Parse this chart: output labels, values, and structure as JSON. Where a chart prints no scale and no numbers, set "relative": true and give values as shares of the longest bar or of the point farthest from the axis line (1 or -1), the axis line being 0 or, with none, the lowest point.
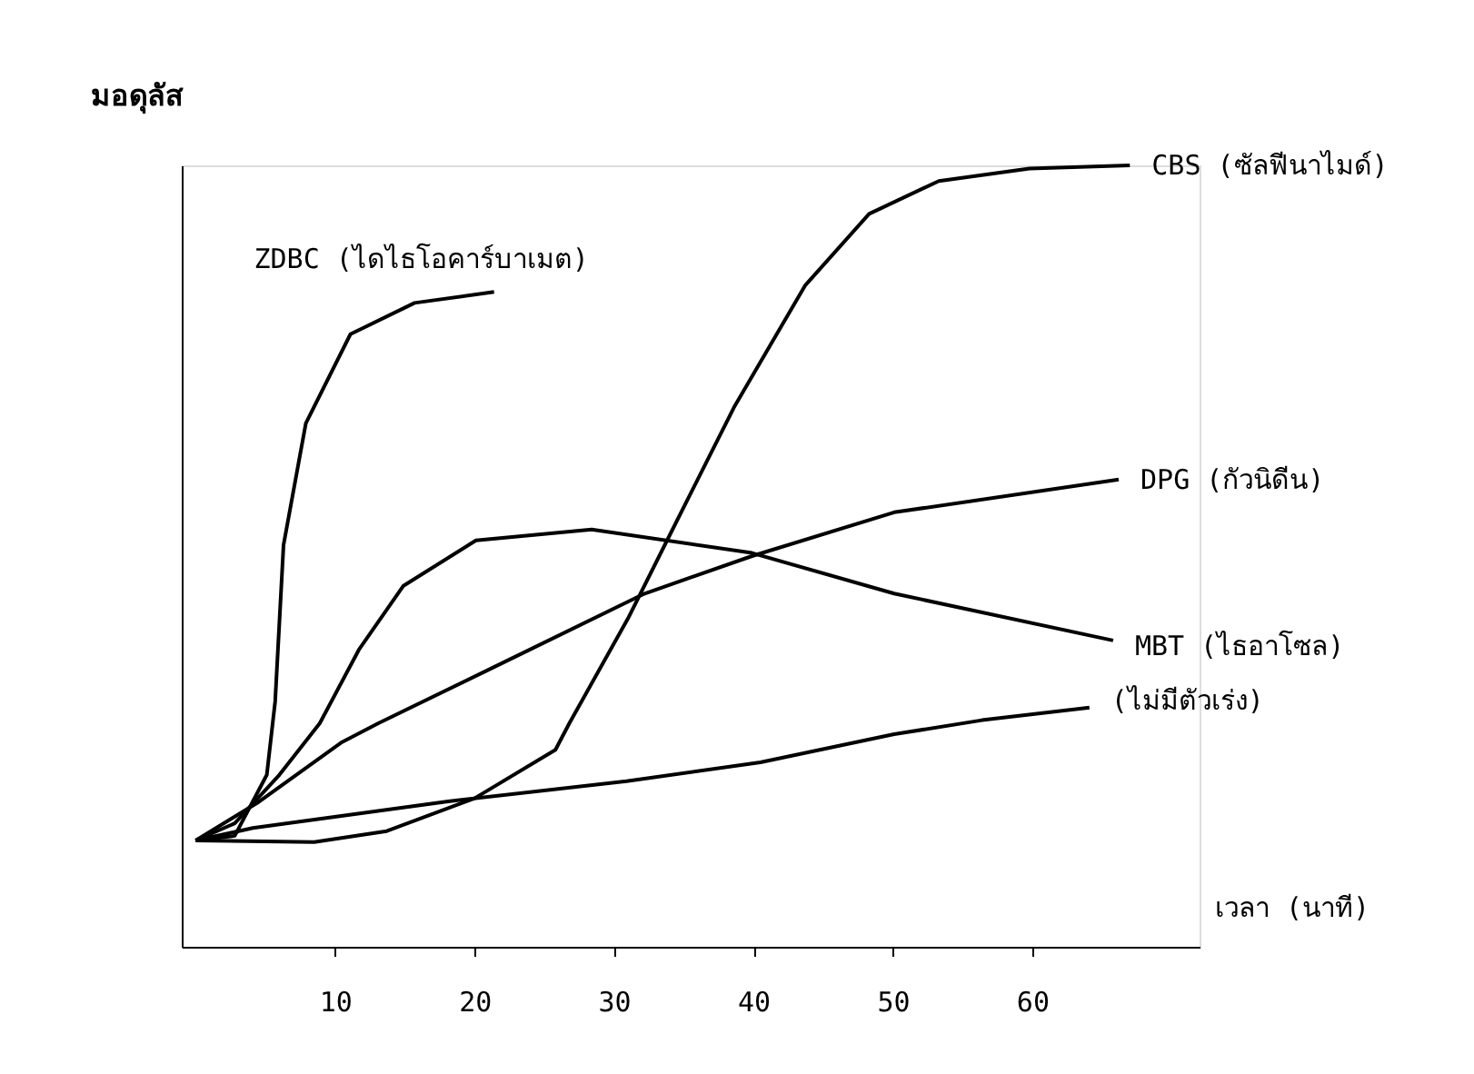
{
  "chart_data": {
    "type": "line",
    "relative": true,
    "ylabel": "มอดุลัส",
    "xlabel": "เวลา (นาที)",
    "xlim": [
      -1,
      72
    ],
    "xticks": [
      10,
      20,
      30,
      40,
      50,
      60
    ],
    "grid": false,
    "series": [
      {
        "name": "ZDBC (ไดไธโอคาร์บาเมต)",
        "color": "#000000",
        "x": [
          0,
          2.8,
          5.1,
          5.7,
          6.3,
          7.9,
          11.1,
          15.7,
          21.4
        ],
        "values": [
          0.136,
          0.142,
          0.22,
          0.314,
          0.514,
          0.67,
          0.784,
          0.824,
          0.838
        ]
      },
      {
        "name": "CBS (ซัลฟีนาไมด์)",
        "color": "#000000",
        "x": [
          0,
          8.5,
          13.7,
          20,
          25.8,
          26.8,
          31,
          34.2,
          38.6,
          43.7,
          48.3,
          53.3,
          59.8,
          67
        ],
        "values": [
          0.136,
          0.134,
          0.148,
          0.19,
          0.252,
          0.286,
          0.42,
          0.534,
          0.69,
          0.846,
          0.938,
          0.98,
          0.996,
          1.0
        ]
      },
      {
        "name": "DPG (กัวนิดีน)",
        "color": "#000000",
        "x": [
          0,
          4.4,
          10.5,
          13.1,
          21.4,
          32.2,
          39.9,
          50.1,
          66.2
        ],
        "values": [
          0.136,
          0.184,
          0.262,
          0.286,
          0.358,
          0.452,
          0.5,
          0.556,
          0.598
        ]
      },
      {
        "name": "MBT (ไธอาโซล)",
        "color": "#000000",
        "x": [
          0,
          2.8,
          6.0,
          8.9,
          11.7,
          14.9,
          20.1,
          28.4,
          39.9,
          50.1,
          65.8
        ],
        "values": [
          0.136,
          0.158,
          0.22,
          0.286,
          0.38,
          0.462,
          0.52,
          0.534,
          0.504,
          0.452,
          0.392
        ]
      },
      {
        "name": "(ไม่มีตัวเร่ง)",
        "color": "#000000",
        "x": [
          0,
          4.1,
          18.1,
          30.9,
          40.5,
          50.1,
          56.4,
          64.1
        ],
        "values": [
          0.136,
          0.152,
          0.186,
          0.212,
          0.236,
          0.272,
          0.29,
          0.306
        ]
      }
    ]
  }
}
